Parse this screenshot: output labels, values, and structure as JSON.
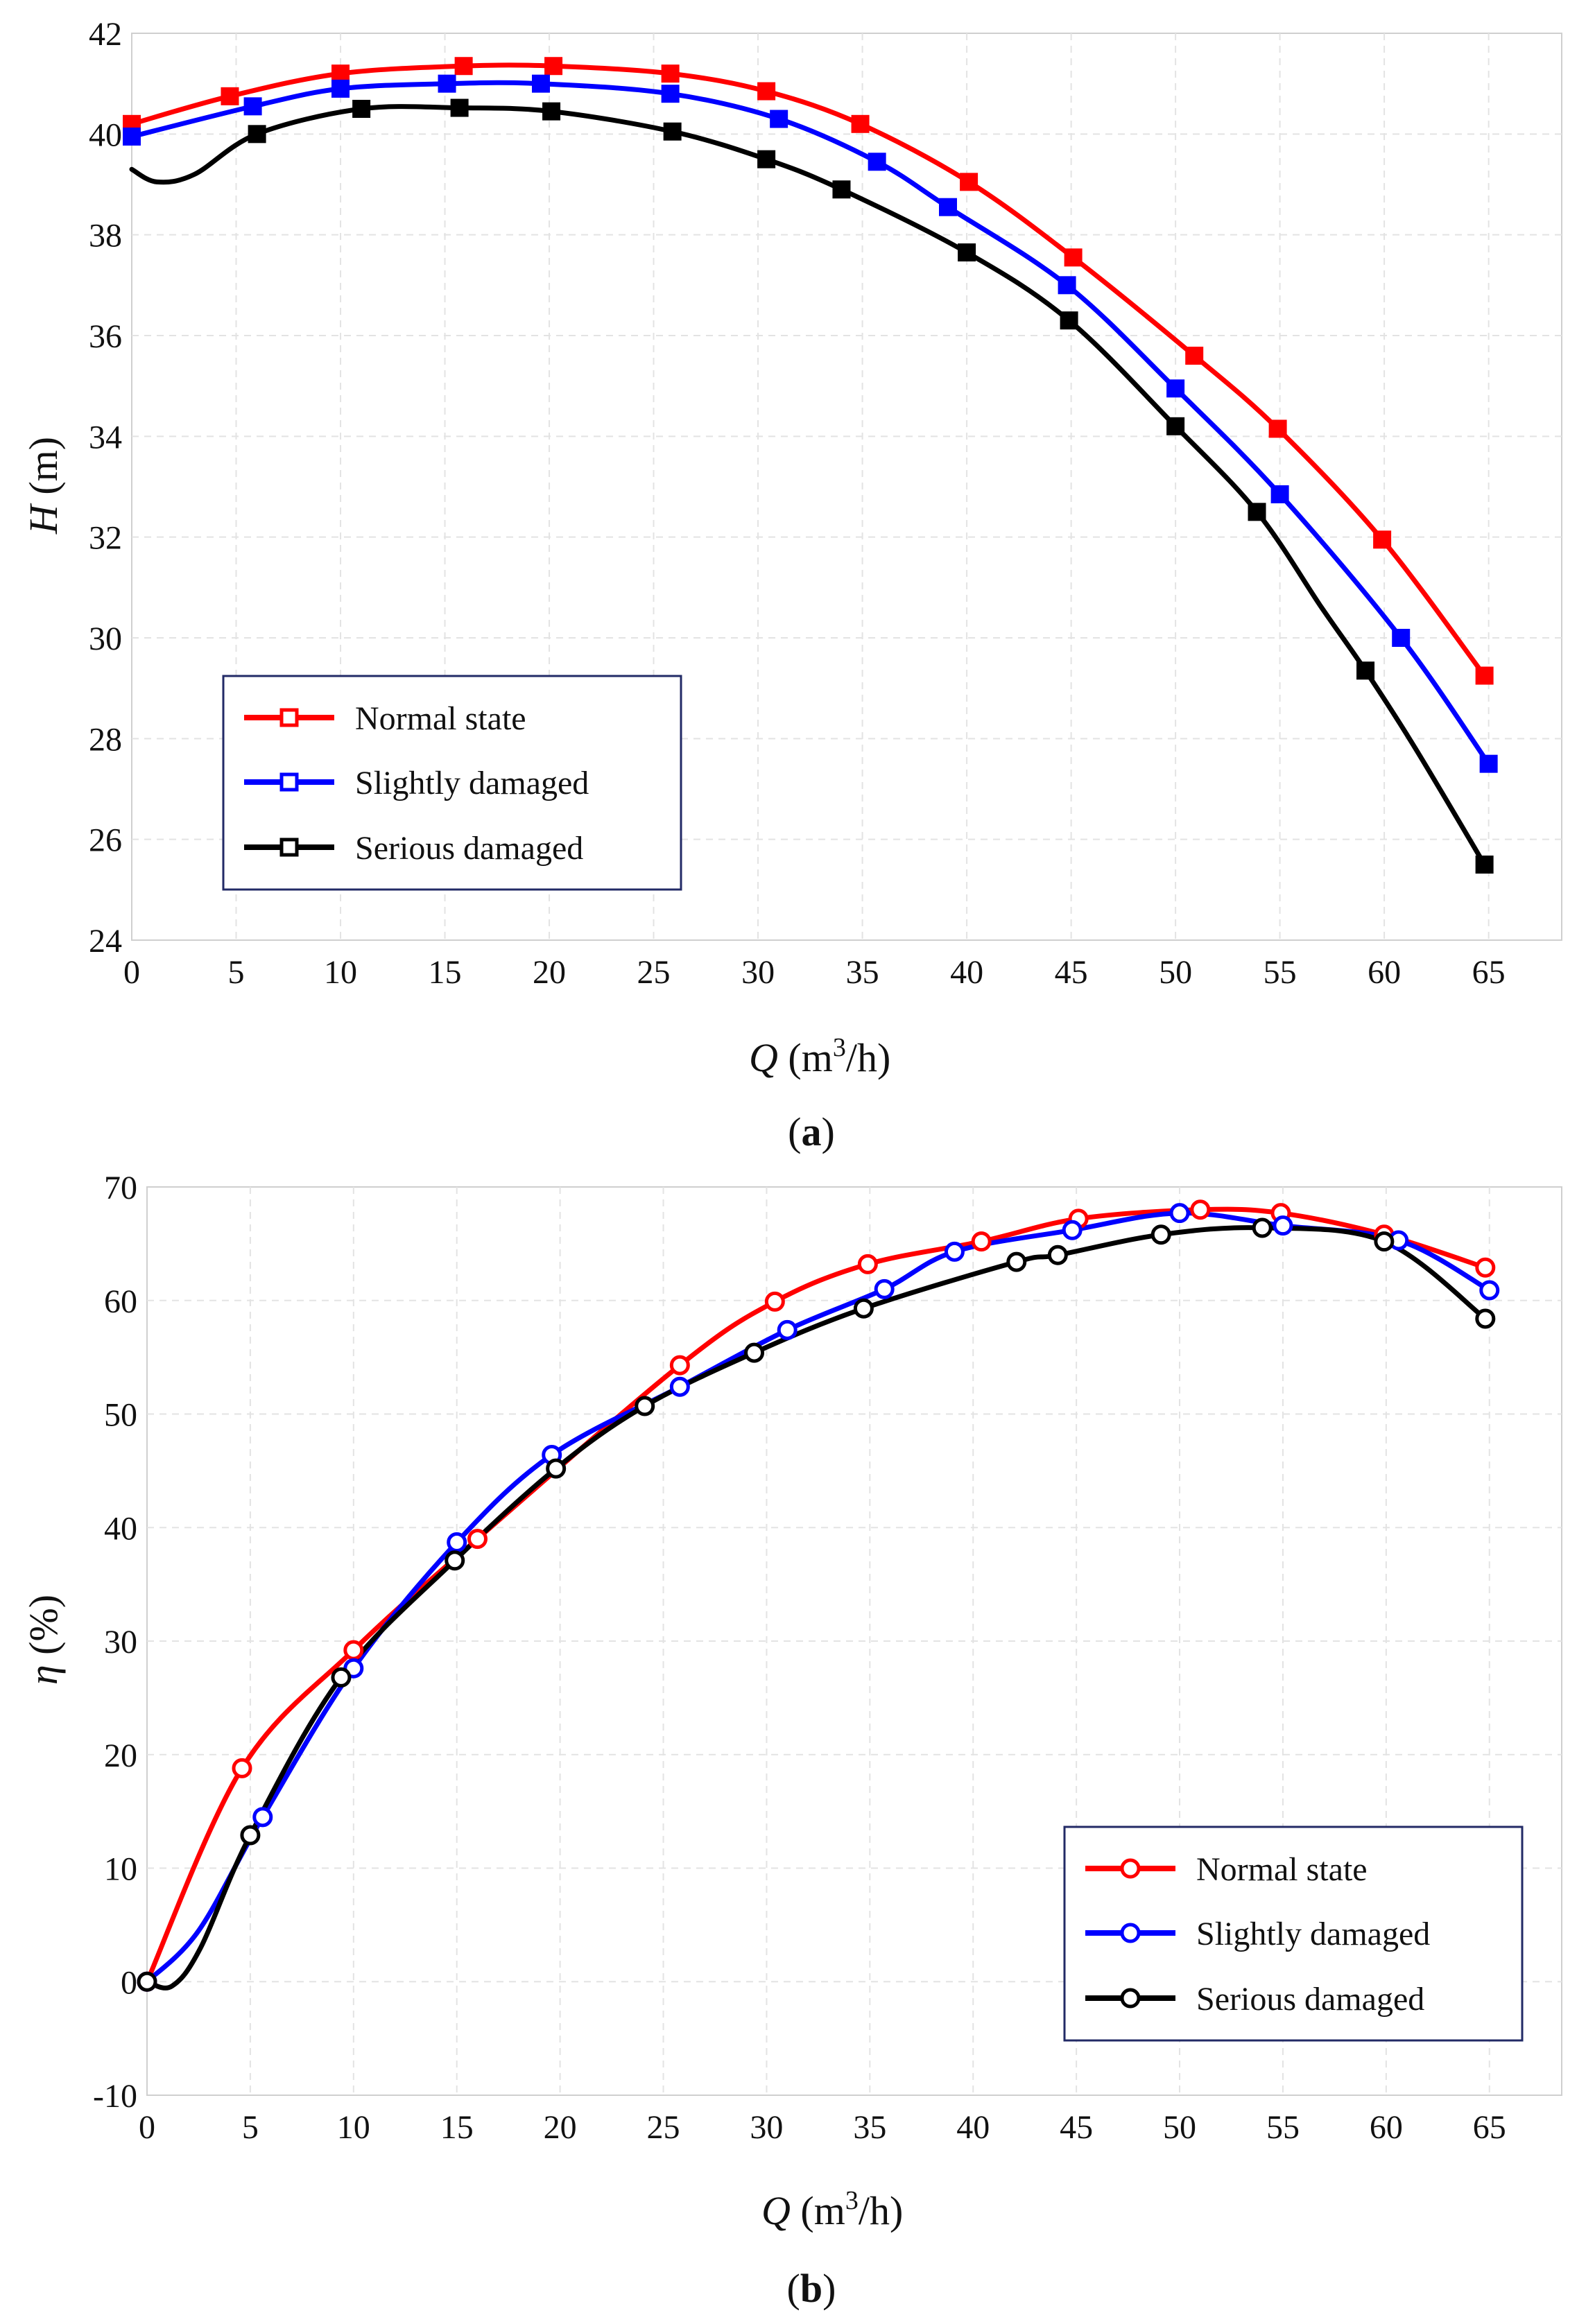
{
  "figure": {
    "panels": [
      {
        "label_prefix": "(",
        "label": "a",
        "label_suffix": ")"
      },
      {
        "label_prefix": "(",
        "label": "b",
        "label_suffix": ")"
      }
    ]
  },
  "chart_data": [
    {
      "type": "line",
      "panel": "a",
      "xlabel": {
        "var": "Q",
        "unit_open": " (m",
        "sup": "3",
        "unit_close": "/h)"
      },
      "ylabel": {
        "var": "H",
        "unit": " (m)"
      },
      "xlim": [
        0,
        68.5
      ],
      "ylim": [
        24,
        42
      ],
      "xticks": [
        0,
        5,
        10,
        15,
        20,
        25,
        30,
        35,
        40,
        45,
        50,
        55,
        60,
        65
      ],
      "yticks": [
        24,
        26,
        28,
        30,
        32,
        34,
        36,
        38,
        40,
        42
      ],
      "grid": true,
      "marker": "square",
      "legend_position": "bottom-left",
      "series": [
        {
          "name": "Normal state",
          "color": "#ff0000",
          "x": [
            0,
            4.7,
            10.0,
            15.9,
            20.2,
            25.8,
            30.4,
            34.9,
            40.1,
            45.1,
            50.9,
            54.9,
            59.9,
            64.8
          ],
          "y": [
            40.2,
            40.75,
            41.2,
            41.35,
            41.35,
            41.2,
            40.85,
            40.2,
            39.05,
            37.55,
            35.6,
            34.15,
            31.95,
            29.25
          ],
          "curve_x": [
            0,
            4.7,
            10.0,
            15.9,
            20.2,
            25.8,
            30.4,
            34.9,
            40.1,
            45.1,
            50.9,
            54.9,
            59.9,
            64.8
          ],
          "curve_y": [
            40.2,
            40.75,
            41.2,
            41.35,
            41.35,
            41.2,
            40.85,
            40.2,
            39.05,
            37.55,
            35.6,
            34.15,
            31.95,
            29.25
          ]
        },
        {
          "name": "Slightly damaged",
          "color": "#0000ff",
          "x": [
            0,
            5.8,
            10.0,
            15.1,
            19.6,
            25.8,
            31.0,
            35.7,
            39.1,
            44.8,
            50.0,
            55.0,
            60.8,
            65.0
          ],
          "y": [
            39.95,
            40.55,
            40.9,
            41.0,
            41.0,
            40.8,
            40.3,
            39.45,
            38.55,
            37.0,
            34.95,
            32.85,
            30.0,
            27.5
          ],
          "curve_x": [
            0,
            5.8,
            10.0,
            15.1,
            19.6,
            25.8,
            31.0,
            35.7,
            39.1,
            44.8,
            50.0,
            55.0,
            60.8,
            65.0
          ],
          "curve_y": [
            39.95,
            40.55,
            40.9,
            41.0,
            41.0,
            40.8,
            40.3,
            39.45,
            38.55,
            37.0,
            34.95,
            32.85,
            30.0,
            27.5
          ]
        },
        {
          "name": "Serious damaged",
          "color": "#000000",
          "x": [
            6.0,
            11.0,
            15.7,
            20.1,
            25.9,
            30.4,
            34.0,
            40.0,
            44.9,
            50.0,
            53.9,
            59.1,
            64.8
          ],
          "y": [
            40.0,
            40.5,
            40.52,
            40.45,
            40.05,
            39.5,
            38.9,
            37.65,
            36.3,
            34.2,
            32.5,
            29.35,
            25.5
          ],
          "curve_x": [
            0,
            1.2,
            3.0,
            6.0,
            11.0,
            15.7,
            20.1,
            25.9,
            30.4,
            34.0,
            40.0,
            44.9,
            50.0,
            53.9,
            57.0,
            59.1,
            61.5,
            64.8
          ],
          "curve_y": [
            39.3,
            39.05,
            39.2,
            40.0,
            40.5,
            40.52,
            40.45,
            40.05,
            39.5,
            38.9,
            37.65,
            36.3,
            34.2,
            32.5,
            30.6,
            29.35,
            27.8,
            25.5
          ]
        }
      ]
    },
    {
      "type": "line",
      "panel": "b",
      "xlabel": {
        "var": "Q",
        "unit_open": " (m",
        "sup": "3",
        "unit_close": "/h)"
      },
      "ylabel": {
        "var": "η",
        "unit": " (%)"
      },
      "xlim": [
        0,
        68.5
      ],
      "ylim": [
        -10,
        70
      ],
      "xticks": [
        0,
        5,
        10,
        15,
        20,
        25,
        30,
        35,
        40,
        45,
        50,
        55,
        60,
        65
      ],
      "yticks": [
        -10,
        0,
        10,
        20,
        30,
        40,
        50,
        60,
        70
      ],
      "grid": true,
      "marker": "circle",
      "legend_position": "bottom-right",
      "series": [
        {
          "name": "Normal state",
          "color": "#ff0000",
          "x": [
            0,
            4.6,
            10.0,
            16.0,
            25.8,
            30.4,
            34.9,
            40.4,
            45.1,
            51.0,
            54.9,
            59.9,
            64.8
          ],
          "y": [
            0,
            18.8,
            29.2,
            39.0,
            54.3,
            59.9,
            63.2,
            65.2,
            67.2,
            68.0,
            67.7,
            65.8,
            62.9
          ],
          "curve_x": [
            0,
            4.6,
            10.0,
            16.0,
            25.8,
            30.4,
            34.9,
            40.4,
            45.1,
            51.0,
            54.9,
            59.9,
            64.8
          ],
          "curve_y": [
            0,
            18.8,
            29.2,
            39.0,
            54.3,
            59.9,
            63.2,
            65.2,
            67.2,
            68.0,
            67.7,
            65.8,
            62.9
          ]
        },
        {
          "name": "Slightly damaged",
          "color": "#0000ff",
          "x": [
            0,
            5.6,
            10.0,
            15.0,
            19.6,
            25.8,
            31.0,
            35.7,
            39.1,
            44.8,
            50.0,
            55.0,
            60.6,
            65.0
          ],
          "y": [
            0,
            14.5,
            27.6,
            38.7,
            46.4,
            52.4,
            57.4,
            61.0,
            64.3,
            66.2,
            67.7,
            66.6,
            65.3,
            60.9
          ],
          "curve_x": [
            0,
            2.5,
            5.6,
            10.0,
            15.0,
            19.6,
            25.8,
            31.0,
            35.7,
            39.1,
            44.8,
            50.0,
            55.0,
            60.6,
            65.0
          ],
          "curve_y": [
            0,
            4.5,
            14.5,
            27.6,
            38.7,
            46.4,
            52.4,
            57.4,
            61.0,
            64.3,
            66.2,
            67.7,
            66.6,
            65.3,
            60.9
          ]
        },
        {
          "name": "Serious damaged",
          "color": "#000000",
          "x": [
            0,
            5.0,
            9.4,
            14.9,
            19.8,
            24.1,
            29.4,
            34.7,
            42.1,
            44.1,
            49.1,
            54.0,
            59.9,
            64.8
          ],
          "y": [
            0,
            12.9,
            26.8,
            37.1,
            45.2,
            50.7,
            55.4,
            59.3,
            63.4,
            64.0,
            65.8,
            66.4,
            65.2,
            58.4
          ],
          "curve_x": [
            0,
            1.2,
            2.6,
            5.0,
            9.4,
            14.9,
            19.8,
            24.1,
            29.4,
            34.7,
            42.1,
            44.1,
            49.1,
            54.0,
            59.9,
            64.8
          ],
          "curve_y": [
            0,
            -0.4,
            3.0,
            12.9,
            26.8,
            37.1,
            45.2,
            50.7,
            55.4,
            59.3,
            63.4,
            64.0,
            65.8,
            66.4,
            65.2,
            58.4
          ]
        }
      ]
    }
  ]
}
